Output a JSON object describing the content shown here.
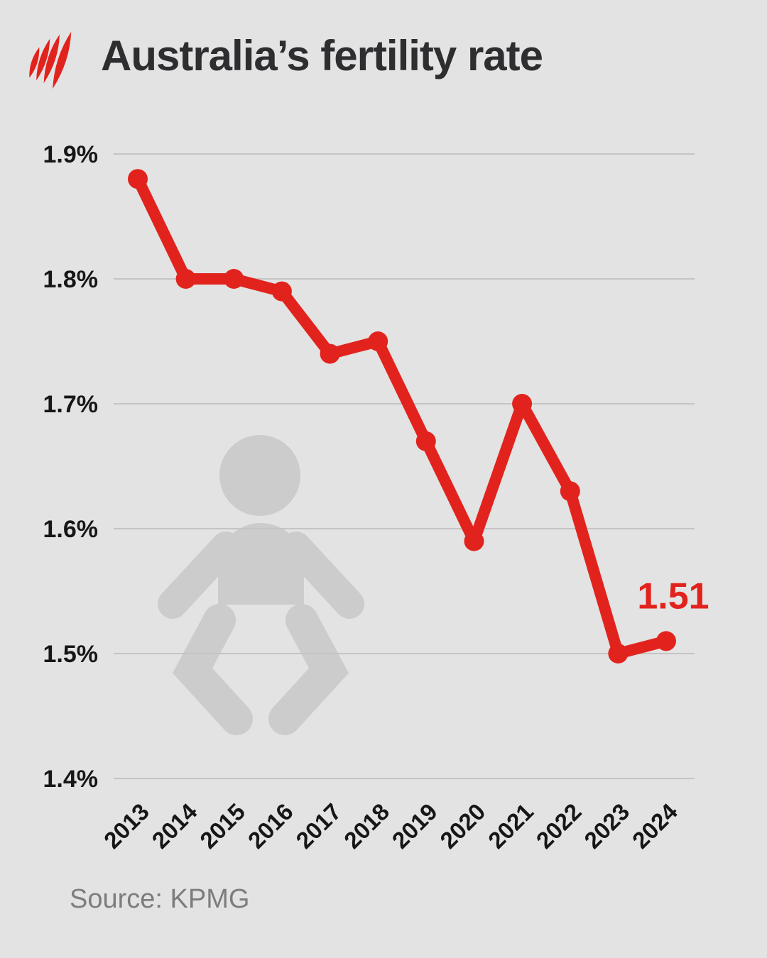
{
  "header": {
    "title": "Australia’s fertility rate",
    "logo": "sbs-mercator-logo"
  },
  "footer": {
    "source_text": "Source: KPMG"
  },
  "colors": {
    "background": "#E3E3E3",
    "line": "#E2231D",
    "grid": "#C4C4C4",
    "title_text": "#2E2E31",
    "axis_label_text": "#161616",
    "source_text": "#7D7D7D",
    "watermark": "#CCCCCC",
    "logo_red": "#E2231D"
  },
  "watermark": {
    "icon": "baby-icon"
  },
  "chart_data": {
    "type": "line",
    "title": "Australia’s fertility rate",
    "xlabel": "",
    "ylabel": "",
    "grid": true,
    "legend": false,
    "ylim": [
      1.4,
      1.9
    ],
    "categories": [
      "2013",
      "2014",
      "2015",
      "2016",
      "2017",
      "2018",
      "2019",
      "2020",
      "2021",
      "2022",
      "2023",
      "2024"
    ],
    "series": [
      {
        "name": "Fertility rate",
        "values": [
          1.88,
          1.8,
          1.8,
          1.79,
          1.74,
          1.75,
          1.67,
          1.59,
          1.7,
          1.63,
          1.5,
          1.51
        ]
      }
    ],
    "yticks": [
      {
        "value": 1.9,
        "label": "1.9%"
      },
      {
        "value": 1.8,
        "label": "1.8%"
      },
      {
        "value": 1.7,
        "label": "1.7%"
      },
      {
        "value": 1.6,
        "label": "1.6%"
      },
      {
        "value": 1.5,
        "label": "1.5%"
      },
      {
        "value": 1.4,
        "label": "1.4%"
      }
    ],
    "annotation": {
      "text": "1.51",
      "value": 1.51,
      "year": "2024"
    }
  }
}
